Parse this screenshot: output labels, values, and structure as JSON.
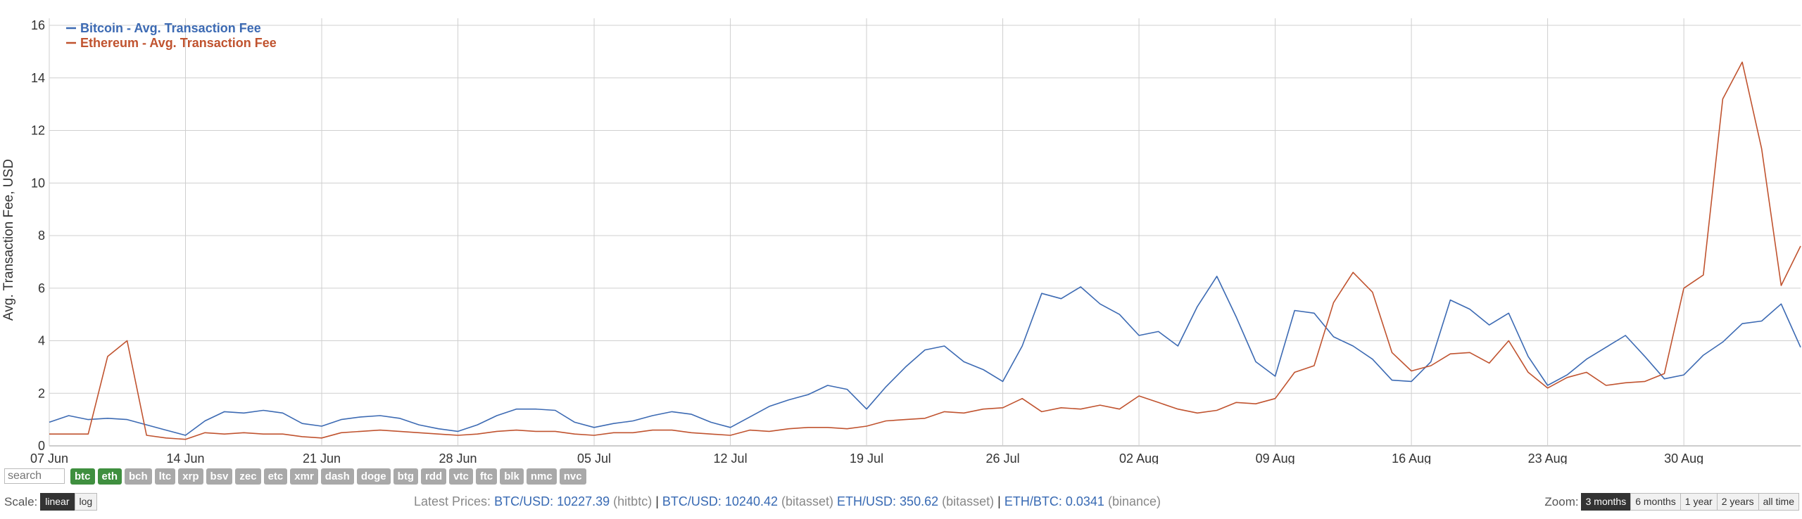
{
  "chart_data": {
    "type": "line",
    "ylabel": "Avg. Transaction Fee, USD",
    "ylim": [
      0,
      16
    ],
    "yticks": [
      0,
      2,
      4,
      6,
      8,
      10,
      12,
      14,
      16
    ],
    "x_start": "07 Jun",
    "x_end": "06 Sep",
    "xticks": [
      {
        "label": "07 Jun",
        "day": 0
      },
      {
        "label": "14 Jun",
        "day": 7
      },
      {
        "label": "21 Jun",
        "day": 14
      },
      {
        "label": "28 Jun",
        "day": 21
      },
      {
        "label": "05 Jul",
        "day": 28
      },
      {
        "label": "12 Jul",
        "day": 35
      },
      {
        "label": "19 Jul",
        "day": 42
      },
      {
        "label": "26 Jul",
        "day": 49
      },
      {
        "label": "02 Aug",
        "day": 56
      },
      {
        "label": "09 Aug",
        "day": 63
      },
      {
        "label": "16 Aug",
        "day": 70
      },
      {
        "label": "23 Aug",
        "day": 77
      },
      {
        "label": "30 Aug",
        "day": 84
      }
    ],
    "grid": true,
    "legend_position": "top-left",
    "series": [
      {
        "name": "Bitcoin - Avg. Transaction Fee",
        "color": "#3c6ab3",
        "values": [
          0.9,
          1.15,
          1.0,
          1.05,
          1.0,
          0.8,
          0.6,
          0.4,
          0.95,
          1.3,
          1.25,
          1.35,
          1.25,
          0.85,
          0.75,
          1.0,
          1.1,
          1.15,
          1.05,
          0.8,
          0.65,
          0.55,
          0.8,
          1.15,
          1.4,
          1.4,
          1.35,
          0.9,
          0.7,
          0.85,
          0.95,
          1.15,
          1.3,
          1.2,
          0.9,
          0.7,
          1.1,
          1.5,
          1.75,
          1.95,
          2.3,
          2.15,
          1.4,
          2.25,
          3.0,
          3.65,
          3.8,
          3.2,
          2.9,
          2.45,
          3.8,
          5.8,
          5.6,
          6.05,
          5.4,
          5.0,
          4.2,
          4.35,
          3.8,
          5.3,
          6.45,
          4.9,
          3.2,
          2.65,
          5.15,
          5.05,
          4.15,
          3.8,
          3.3,
          2.5,
          2.45,
          3.2,
          5.55,
          5.2,
          4.6,
          5.05,
          3.4,
          2.3,
          2.7,
          3.3,
          3.75,
          4.2,
          3.4,
          2.55,
          2.7,
          3.45,
          3.95,
          4.65,
          4.75,
          5.4,
          3.75
        ]
      },
      {
        "name": "Ethereum - Avg. Transaction Fee",
        "color": "#c0532f",
        "values": [
          0.45,
          0.45,
          0.45,
          3.4,
          4.0,
          0.4,
          0.3,
          0.25,
          0.5,
          0.45,
          0.5,
          0.45,
          0.45,
          0.35,
          0.3,
          0.5,
          0.55,
          0.6,
          0.55,
          0.5,
          0.45,
          0.4,
          0.45,
          0.55,
          0.6,
          0.55,
          0.55,
          0.45,
          0.4,
          0.5,
          0.5,
          0.6,
          0.6,
          0.5,
          0.45,
          0.4,
          0.6,
          0.55,
          0.65,
          0.7,
          0.7,
          0.65,
          0.75,
          0.95,
          1.0,
          1.05,
          1.3,
          1.25,
          1.4,
          1.45,
          1.8,
          1.3,
          1.45,
          1.4,
          1.55,
          1.4,
          1.9,
          1.65,
          1.4,
          1.25,
          1.35,
          1.65,
          1.6,
          1.8,
          2.8,
          3.05,
          5.45,
          6.6,
          5.85,
          3.55,
          2.85,
          3.05,
          3.5,
          3.55,
          3.15,
          4.0,
          2.8,
          2.2,
          2.6,
          2.8,
          2.3,
          2.4,
          2.45,
          2.75,
          6.0,
          6.5,
          13.2,
          14.6,
          11.3,
          6.1,
          7.6
        ]
      }
    ]
  },
  "controls": {
    "search_placeholder": "search",
    "coins": [
      {
        "label": "btc",
        "active": true
      },
      {
        "label": "eth",
        "active": true
      },
      {
        "label": "bch",
        "active": false
      },
      {
        "label": "ltc",
        "active": false
      },
      {
        "label": "xrp",
        "active": false
      },
      {
        "label": "bsv",
        "active": false
      },
      {
        "label": "zec",
        "active": false
      },
      {
        "label": "etc",
        "active": false
      },
      {
        "label": "xmr",
        "active": false
      },
      {
        "label": "dash",
        "active": false
      },
      {
        "label": "doge",
        "active": false
      },
      {
        "label": "btg",
        "active": false
      },
      {
        "label": "rdd",
        "active": false
      },
      {
        "label": "vtc",
        "active": false
      },
      {
        "label": "ftc",
        "active": false
      },
      {
        "label": "blk",
        "active": false
      },
      {
        "label": "nmc",
        "active": false
      },
      {
        "label": "nvc",
        "active": false
      }
    ],
    "scale_label": "Scale:",
    "scale_linear": "linear",
    "scale_log": "log",
    "zoom_label": "Zoom:",
    "zoom_options": [
      "3 months",
      "6 months",
      "1 year",
      "2 years",
      "all time"
    ],
    "zoom_active": "3 months"
  },
  "prices": {
    "label": "Latest Prices:",
    "items": [
      {
        "pair": "BTC/USD:",
        "value": "10227.39",
        "source": "(hitbtc)",
        "sep": "|"
      },
      {
        "pair": "BTC/USD:",
        "value": "10240.42",
        "source": "(bitasset)",
        "sep": ""
      },
      {
        "pair": "ETH/USD:",
        "value": "350.62",
        "source": "(bitasset)",
        "sep": "|"
      },
      {
        "pair": "ETH/BTC:",
        "value": "0.0341",
        "source": "(binance)",
        "sep": ""
      }
    ]
  }
}
